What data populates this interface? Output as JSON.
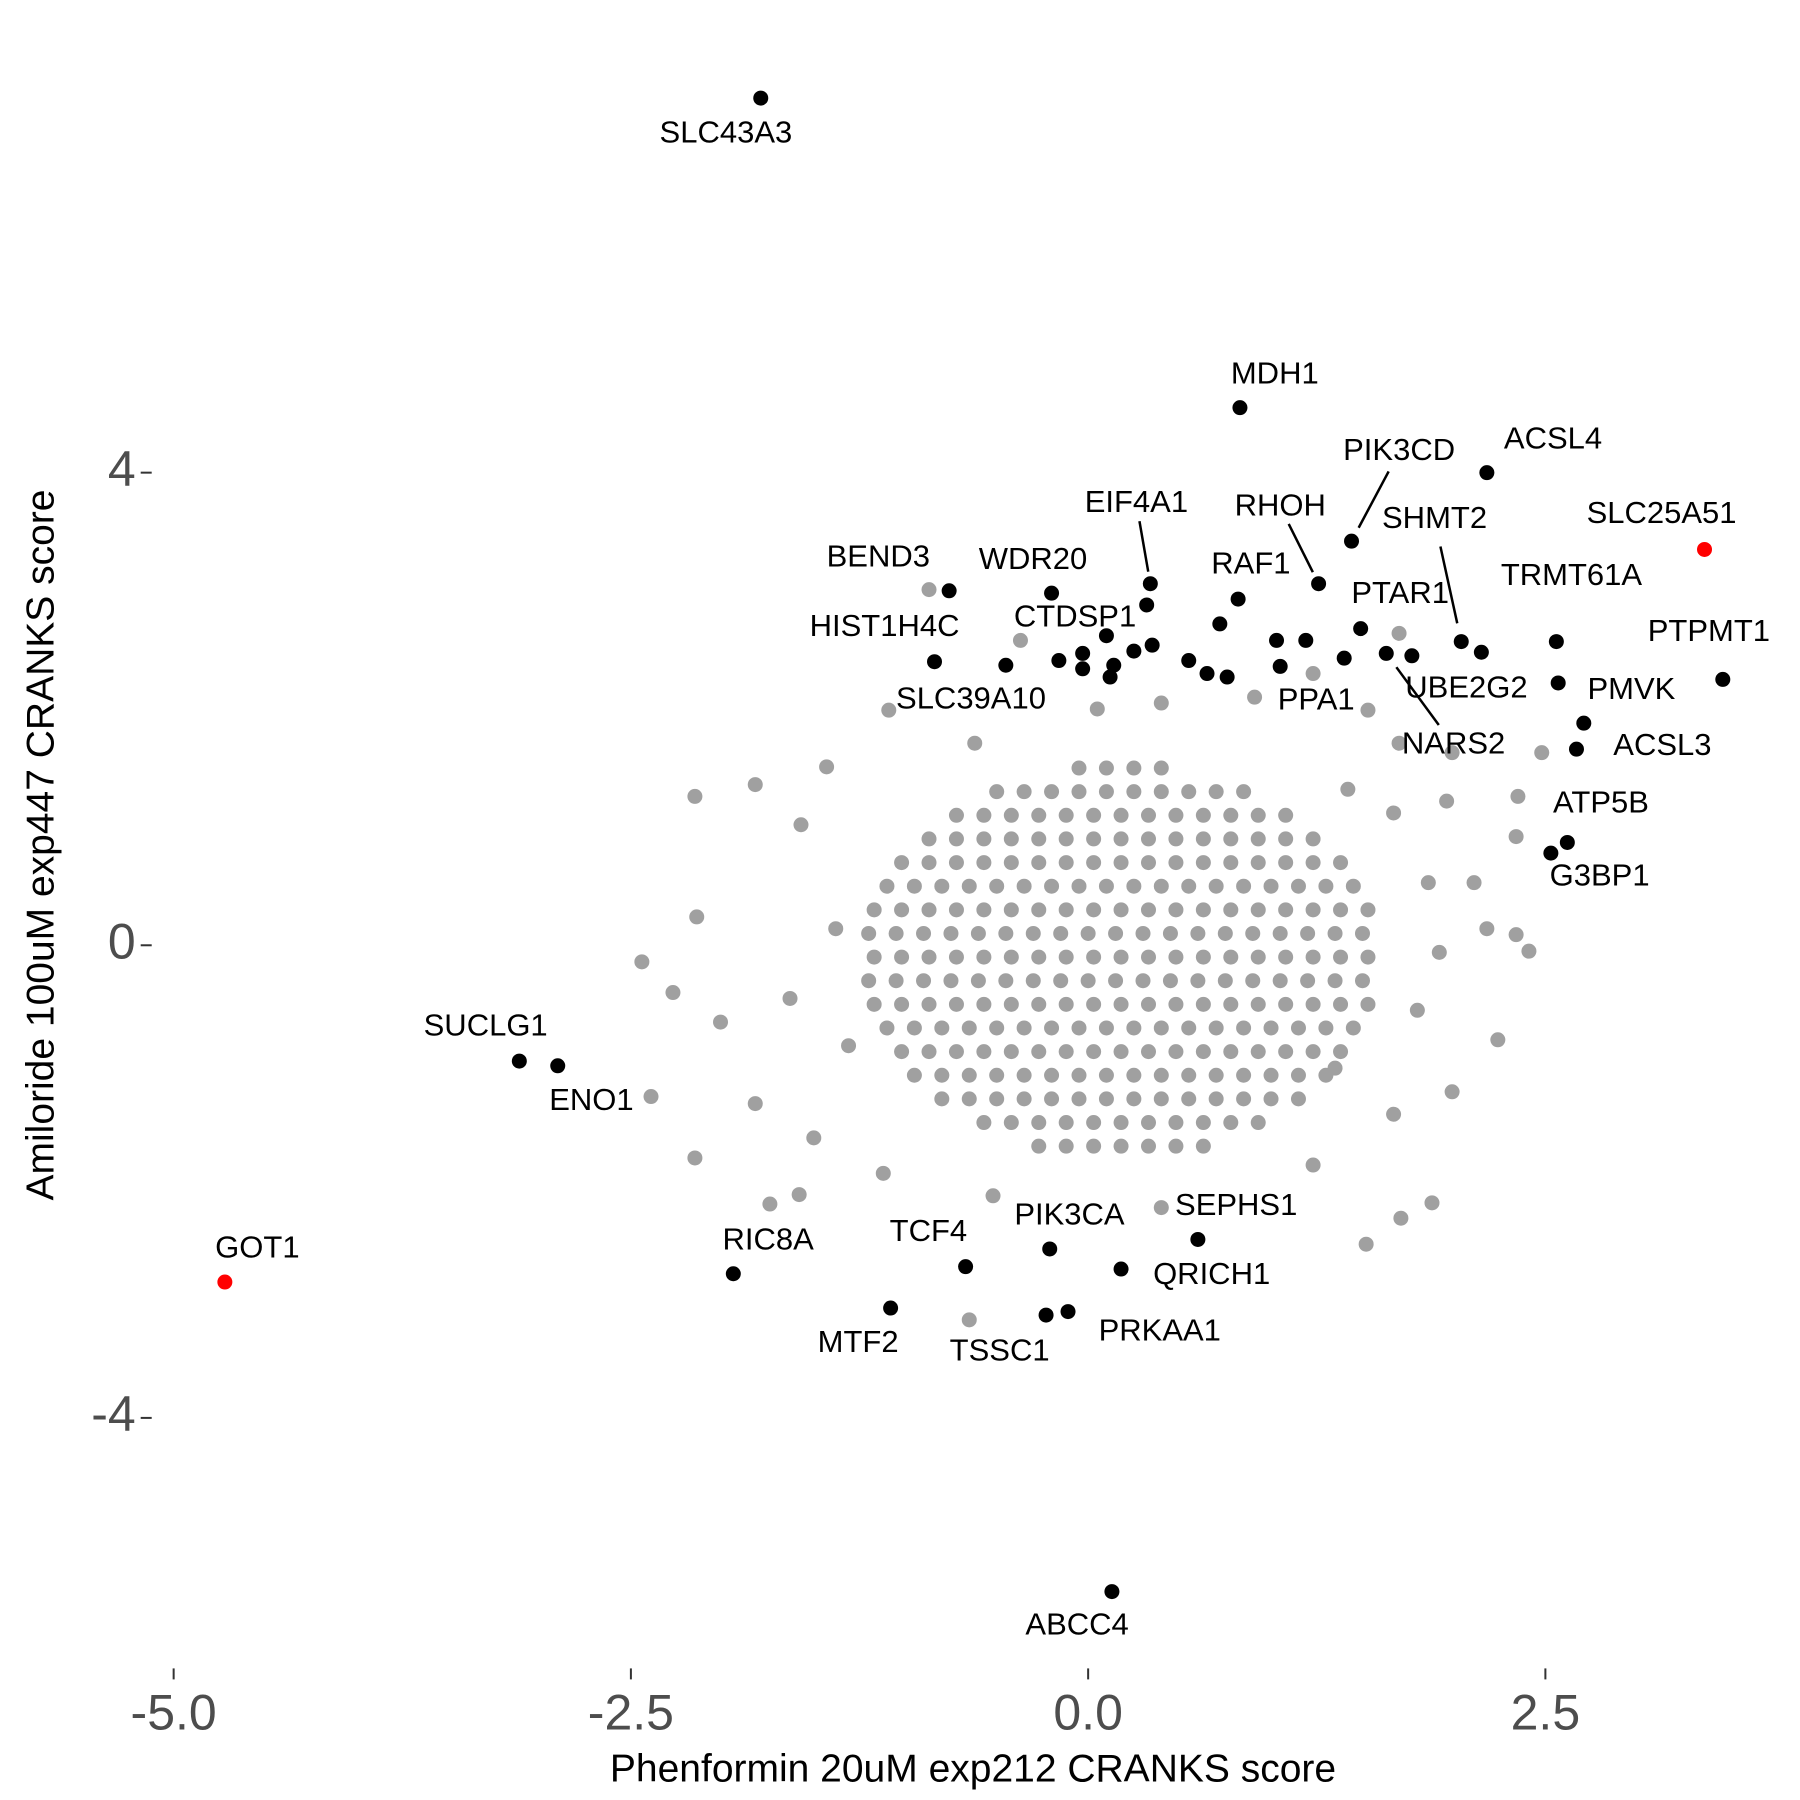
{
  "chart_data": {
    "type": "scatter",
    "xlabel": "Phenformin 20uM exp212 CRANKS score",
    "ylabel": "Amiloride 100uM exp447 CRANKS score",
    "xlim": [
      -5.12,
      3.85
    ],
    "ylim": [
      -6.12,
      7.5
    ],
    "xticks": [
      {
        "value": -5,
        "label": "-5.0"
      },
      {
        "value": -2.5,
        "label": "-2.5"
      },
      {
        "value": 0,
        "label": "0.0"
      },
      {
        "value": 2.5,
        "label": "2.5"
      }
    ],
    "yticks": [
      -4,
      0,
      4
    ],
    "grid": false,
    "series": [
      {
        "color": "#a0a0a0",
        "x": [
          -0.05,
          0.1,
          0.25,
          0.4,
          -0.5,
          -0.35,
          -0.2,
          -0.05,
          0.1,
          0.25,
          0.4,
          0.55,
          0.7,
          0.85,
          -0.72,
          -0.57,
          -0.42,
          -0.27,
          -0.12,
          0.03,
          0.18,
          0.33,
          0.48,
          0.63,
          0.78,
          0.93,
          1.08,
          -0.87,
          -0.72,
          -0.57,
          -0.42,
          -0.27,
          -0.12,
          0.03,
          0.18,
          0.33,
          0.48,
          0.63,
          0.78,
          0.93,
          1.08,
          1.23,
          -1.02,
          -0.87,
          -0.72,
          -0.57,
          -0.42,
          -0.27,
          -0.12,
          0.03,
          0.18,
          0.33,
          0.48,
          0.63,
          0.78,
          0.93,
          1.08,
          1.23,
          1.38,
          -1.1,
          -0.95,
          -0.8,
          -0.65,
          -0.5,
          -0.35,
          -0.2,
          -0.05,
          0.1,
          0.25,
          0.4,
          0.55,
          0.7,
          0.85,
          1.0,
          1.15,
          1.3,
          1.45,
          -1.17,
          -1.02,
          -0.87,
          -0.72,
          -0.57,
          -0.42,
          -0.27,
          -0.12,
          0.03,
          0.18,
          0.33,
          0.48,
          0.63,
          0.78,
          0.93,
          1.08,
          1.23,
          1.38,
          1.53,
          -1.2,
          -1.05,
          -0.9,
          -0.75,
          -0.6,
          -0.45,
          -0.3,
          -0.15,
          0,
          0.15,
          0.3,
          0.45,
          0.6,
          0.75,
          0.9,
          1.05,
          1.2,
          1.35,
          1.5,
          -1.17,
          -1.02,
          -0.87,
          -0.72,
          -0.57,
          -0.42,
          -0.27,
          -0.12,
          0.03,
          0.18,
          0.33,
          0.48,
          0.63,
          0.78,
          0.93,
          1.08,
          1.23,
          1.38,
          1.53,
          -1.2,
          -1.05,
          -0.9,
          -0.75,
          -0.6,
          -0.45,
          -0.3,
          -0.15,
          0,
          0.15,
          0.3,
          0.45,
          0.6,
          0.75,
          0.9,
          1.05,
          1.2,
          1.35,
          1.5,
          -1.17,
          -1.02,
          -0.87,
          -0.72,
          -0.57,
          -0.42,
          -0.27,
          -0.12,
          0.03,
          0.18,
          0.33,
          0.48,
          0.63,
          0.78,
          0.93,
          1.08,
          1.23,
          1.38,
          1.53,
          -1.1,
          -0.95,
          -0.8,
          -0.65,
          -0.5,
          -0.35,
          -0.2,
          -0.05,
          0.1,
          0.25,
          0.4,
          0.55,
          0.7,
          0.85,
          1.0,
          1.15,
          1.3,
          1.45,
          -1.02,
          -0.87,
          -0.72,
          -0.57,
          -0.42,
          -0.27,
          -0.12,
          0.03,
          0.18,
          0.33,
          0.48,
          0.63,
          0.78,
          0.93,
          1.08,
          1.23,
          1.38,
          -0.95,
          -0.8,
          -0.65,
          -0.5,
          -0.35,
          -0.2,
          -0.05,
          0.1,
          0.25,
          0.4,
          0.55,
          0.7,
          0.85,
          1.0,
          1.15,
          1.3,
          -0.8,
          -0.65,
          -0.5,
          -0.35,
          -0.2,
          -0.05,
          0.1,
          0.25,
          0.4,
          0.55,
          0.7,
          0.85,
          1.0,
          1.15,
          -0.57,
          -0.42,
          -0.27,
          -0.12,
          0.03,
          0.18,
          0.33,
          0.48,
          0.63,
          0.78,
          0.93,
          -0.27,
          -0.12,
          0.03,
          0.18,
          0.33,
          0.48,
          0.63,
          -2.15,
          -2.44,
          -2.27,
          -2.39,
          -2.15,
          -1.74,
          -1.58,
          -0.87,
          -0.37,
          -1.09,
          -1.43,
          -1.82,
          -1.57,
          -2.14,
          -2.01,
          -1.82,
          -1.5,
          -1.12,
          -0.65,
          -0.52,
          0.4,
          1.23,
          1.52,
          1.71,
          1.88,
          2.24,
          2.41,
          2.34,
          2.11,
          2.34,
          2.35,
          2.48,
          1.96,
          1.99,
          1.7,
          1.53,
          1.23,
          1.7,
          0.91,
          0.4,
          0.05,
          -0.62,
          1.99,
          1.67,
          1.35,
          1.67,
          1.42,
          -1.38,
          -1.63,
          -1.31,
          1.92,
          1.86,
          2.18,
          1.8
        ],
        "values": [
          1.5,
          1.5,
          1.5,
          1.5,
          1.3,
          1.3,
          1.3,
          1.3,
          1.3,
          1.3,
          1.3,
          1.3,
          1.3,
          1.3,
          1.1,
          1.1,
          1.1,
          1.1,
          1.1,
          1.1,
          1.1,
          1.1,
          1.1,
          1.1,
          1.1,
          1.1,
          1.1,
          0.9,
          0.9,
          0.9,
          0.9,
          0.9,
          0.9,
          0.9,
          0.9,
          0.9,
          0.9,
          0.9,
          0.9,
          0.9,
          0.9,
          0.9,
          0.7,
          0.7,
          0.7,
          0.7,
          0.7,
          0.7,
          0.7,
          0.7,
          0.7,
          0.7,
          0.7,
          0.7,
          0.7,
          0.7,
          0.7,
          0.7,
          0.7,
          0.5,
          0.5,
          0.5,
          0.5,
          0.5,
          0.5,
          0.5,
          0.5,
          0.5,
          0.5,
          0.5,
          0.5,
          0.5,
          0.5,
          0.5,
          0.5,
          0.5,
          0.5,
          0.3,
          0.3,
          0.3,
          0.3,
          0.3,
          0.3,
          0.3,
          0.3,
          0.3,
          0.3,
          0.3,
          0.3,
          0.3,
          0.3,
          0.3,
          0.3,
          0.3,
          0.3,
          0.3,
          0.1,
          0.1,
          0.1,
          0.1,
          0.1,
          0.1,
          0.1,
          0.1,
          0.1,
          0.1,
          0.1,
          0.1,
          0.1,
          0.1,
          0.1,
          0.1,
          0.1,
          0.1,
          0.1,
          -0.1,
          -0.1,
          -0.1,
          -0.1,
          -0.1,
          -0.1,
          -0.1,
          -0.1,
          -0.1,
          -0.1,
          -0.1,
          -0.1,
          -0.1,
          -0.1,
          -0.1,
          -0.1,
          -0.1,
          -0.1,
          -0.1,
          -0.3,
          -0.3,
          -0.3,
          -0.3,
          -0.3,
          -0.3,
          -0.3,
          -0.3,
          -0.3,
          -0.3,
          -0.3,
          -0.3,
          -0.3,
          -0.3,
          -0.3,
          -0.3,
          -0.3,
          -0.3,
          -0.3,
          -0.5,
          -0.5,
          -0.5,
          -0.5,
          -0.5,
          -0.5,
          -0.5,
          -0.5,
          -0.5,
          -0.5,
          -0.5,
          -0.5,
          -0.5,
          -0.5,
          -0.5,
          -0.5,
          -0.5,
          -0.5,
          -0.5,
          -0.7,
          -0.7,
          -0.7,
          -0.7,
          -0.7,
          -0.7,
          -0.7,
          -0.7,
          -0.7,
          -0.7,
          -0.7,
          -0.7,
          -0.7,
          -0.7,
          -0.7,
          -0.7,
          -0.7,
          -0.7,
          -0.9,
          -0.9,
          -0.9,
          -0.9,
          -0.9,
          -0.9,
          -0.9,
          -0.9,
          -0.9,
          -0.9,
          -0.9,
          -0.9,
          -0.9,
          -0.9,
          -0.9,
          -0.9,
          -0.9,
          -1.1,
          -1.1,
          -1.1,
          -1.1,
          -1.1,
          -1.1,
          -1.1,
          -1.1,
          -1.1,
          -1.1,
          -1.1,
          -1.1,
          -1.1,
          -1.1,
          -1.1,
          -1.1,
          -1.3,
          -1.3,
          -1.3,
          -1.3,
          -1.3,
          -1.3,
          -1.3,
          -1.3,
          -1.3,
          -1.3,
          -1.3,
          -1.3,
          -1.3,
          -1.3,
          -1.5,
          -1.5,
          -1.5,
          -1.5,
          -1.5,
          -1.5,
          -1.5,
          -1.5,
          -1.5,
          -1.5,
          -1.5,
          -1.7,
          -1.7,
          -1.7,
          -1.7,
          -1.7,
          -1.7,
          -1.7,
          1.26,
          -0.14,
          -0.4,
          -1.28,
          -1.8,
          -2.19,
          -2.11,
          3.01,
          2.58,
          1.99,
          1.51,
          1.36,
          1.02,
          0.24,
          -0.65,
          -1.34,
          -1.63,
          -1.93,
          -3.17,
          -2.12,
          -2.22,
          -1.86,
          -2.53,
          -2.31,
          -2.18,
          -0.8,
          -0.05,
          0.09,
          0.53,
          0.92,
          1.26,
          1.63,
          1.22,
          1.63,
          1.71,
          1.99,
          2.3,
          2.64,
          2.1,
          2.05,
          2.0,
          1.71,
          -1.24,
          -1.43,
          -1.04,
          1.12,
          1.32,
          0.14,
          -0.45,
          -0.85,
          -0.06,
          0.53,
          0.14,
          -0.55
        ]
      },
      {
        "color": "#000000",
        "x": [
          0.32,
          0.35,
          0.25,
          -0.03,
          -0.16,
          -0.03,
          0.14,
          0.12,
          0.55,
          0.65,
          0.76,
          0.72,
          1.03,
          1.19,
          1.4,
          2.15,
          2.57
        ],
        "values": [
          2.88,
          2.54,
          2.49,
          2.47,
          2.41,
          2.34,
          2.37,
          2.27,
          2.41,
          2.3,
          2.27,
          2.72,
          2.58,
          2.58,
          2.43,
          2.48,
          2.22
        ]
      },
      {
        "color": "#000000",
        "labels": [
          "SLC43A3",
          "MDH1",
          "ACSL4",
          "PIK3CD",
          "RHOH",
          "EIF4A1",
          "WDR20",
          "BEND3",
          "RAF1",
          "CTDSP1",
          "PTAR1",
          "SHMT2",
          "TRMT61A",
          "HIST1H4C",
          "PTPMT1",
          "UBE2G2",
          "PPA1",
          "PMVK",
          "SLC39A10",
          "NARS2",
          "ACSL3",
          "ATP5B",
          "G3BP1",
          "SUCLG1",
          "ENO1",
          "RIC8A",
          "TCF4",
          "PIK3CA",
          "SEPHS1",
          "QRICH1",
          "MTF2",
          "TSSC1",
          "PRKAA1",
          "ABCC4"
        ],
        "x": [
          -1.79,
          0.83,
          2.18,
          1.44,
          1.26,
          0.34,
          -0.2,
          -0.76,
          0.82,
          0.1,
          1.49,
          2.04,
          2.56,
          -0.84,
          3.47,
          1.77,
          1.05,
          2.71,
          -0.45,
          1.63,
          2.67,
          2.62,
          2.53,
          -3.11,
          -2.9,
          -1.94,
          -0.67,
          -0.21,
          0.6,
          0.18,
          -1.08,
          -0.23,
          -0.11,
          0.13
        ],
        "values": [
          7.17,
          4.55,
          4.0,
          3.42,
          3.06,
          3.06,
          2.98,
          3.0,
          2.93,
          2.62,
          2.68,
          2.57,
          2.57,
          2.4,
          2.25,
          2.45,
          2.36,
          1.88,
          2.37,
          2.47,
          1.66,
          0.87,
          0.78,
          -0.98,
          -1.02,
          -2.78,
          -2.72,
          -2.57,
          -2.49,
          -2.74,
          -3.07,
          -3.13,
          -3.1,
          -5.47
        ]
      },
      {
        "color": "#ff0000",
        "labels": [
          "SLC25A51",
          "GOT1"
        ],
        "x": [
          3.37,
          -4.72
        ],
        "values": [
          3.35,
          -2.85
        ]
      }
    ]
  }
}
